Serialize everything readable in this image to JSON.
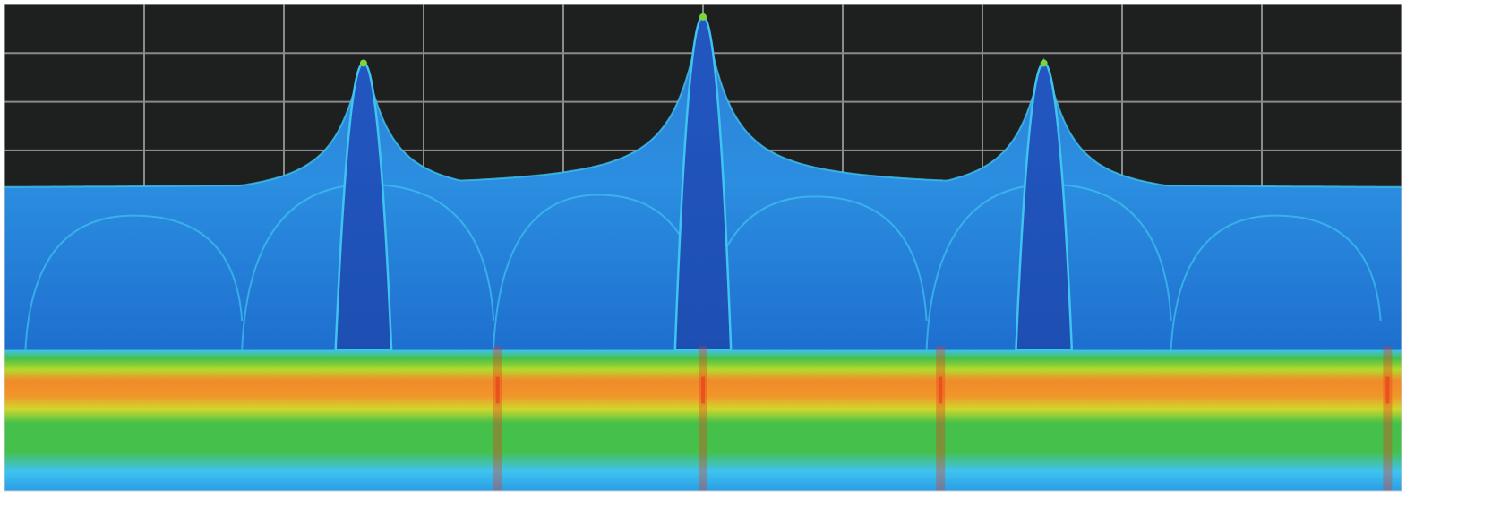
{
  "chart_data": {
    "type": "area",
    "title": "",
    "xlabel": "",
    "ylabel": "",
    "grid": true,
    "x_divisions": 10,
    "y_divisions": 10,
    "xlim": [
      0,
      10
    ],
    "ylim": [
      0,
      10
    ],
    "display_style": "persistence spectrum",
    "background_color": "#1e1f1f",
    "grid_color": "#8a8a8a",
    "peaks": [
      {
        "x": 2.57,
        "y": 8.85
      },
      {
        "x": 5.0,
        "y": 9.8
      },
      {
        "x": 7.44,
        "y": 8.85
      }
    ],
    "floor": {
      "edge_level": 5.15,
      "center_level": 6.2
    },
    "noise_band": {
      "bottom": 0,
      "top": 2.9,
      "peak_density_level": 2.0
    },
    "spurs_x": [
      3.53,
      5.0,
      6.7,
      9.9
    ],
    "colors": {
      "trace_light": "#3fc3ef",
      "trace_dark": "#1f55b8",
      "peak_tip": "#7ed43a",
      "band_green": "#45c04a",
      "band_yellow": "#d9d92a",
      "band_orange": "#f08a2a",
      "band_red": "#e83a1a"
    }
  }
}
